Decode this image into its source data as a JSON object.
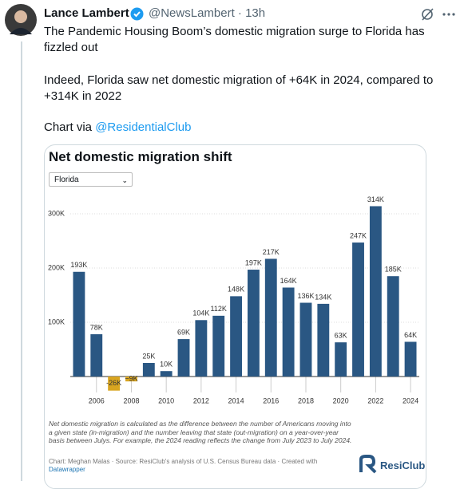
{
  "tweet": {
    "author": "Lance Lambert",
    "meta": "@NewsLambert · 13h",
    "paragraphs": [
      "The Pandemic Housing Boom’s domestic migration surge to Florida has fizzled out",
      "Indeed, Florida saw net domestic migration of +64K in 2024, compared to +314K in 2022"
    ],
    "chart_via": "Chart via",
    "mention": "@ResidentialClub"
  },
  "chart_data": {
    "type": "bar",
    "title": "Net domestic migration shift",
    "dropdown": "Florida",
    "x": [
      2005,
      2006,
      2007,
      2008,
      2009,
      2010,
      2011,
      2012,
      2013,
      2014,
      2015,
      2016,
      2017,
      2018,
      2019,
      2020,
      2021,
      2022,
      2023,
      2024
    ],
    "values": [
      193,
      78,
      -26,
      -9,
      25,
      10,
      69,
      104,
      112,
      148,
      197,
      217,
      164,
      136,
      134,
      63,
      247,
      314,
      185,
      64
    ],
    "value_labels": [
      "193K",
      "78K",
      "-26K",
      "−9K",
      "25K",
      "10K",
      "69K",
      "104K",
      "112K",
      "148K",
      "197K",
      "217K",
      "164K",
      "136K",
      "134K",
      "63K",
      "247K",
      "314K",
      "185K",
      "64K"
    ],
    "color": "#2a5783",
    "negative_color": "#d9a520",
    "xlim": [
      2004.5,
      2024.5
    ],
    "xticks": [
      2006,
      2008,
      2010,
      2012,
      2014,
      2016,
      2018,
      2020,
      2022,
      2024
    ],
    "ylim": [
      -30,
      320
    ],
    "yticks": [
      {
        "value": 100,
        "label": "100K"
      },
      {
        "value": 200,
        "label": "200K"
      },
      {
        "value": 300,
        "label": "300K"
      }
    ],
    "grid": true,
    "note": "Net domestic migration is calculated as the difference between the number of Americans moving into a given state (in-migration) and the number leaving that state (out-migration) on a year-over-year basis between Julys. For example, the 2024 reading reflects the change from July 2023 to July 2024.",
    "credit": "Chart: Meghan Malas · Source: ResiClub's analysis of U.S. Census Bureau data · Created with",
    "credit_link": "Datawrapper",
    "logo": "ResiClub"
  }
}
